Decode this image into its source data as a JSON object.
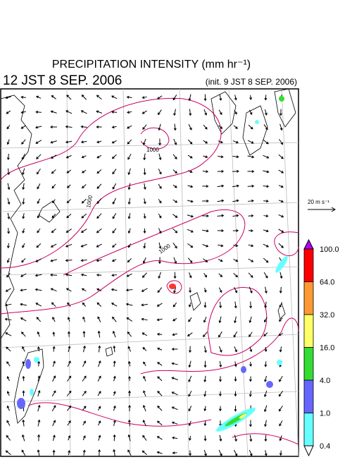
{
  "header": {
    "title": "PRECIPITATION INTENSITY (mm hr⁻¹)",
    "valid_time": "12 JST 8 SEP. 2006",
    "init_time": "(init. 9 JST 8 SEP. 2006)"
  },
  "map": {
    "contour_labels": [
      "1000",
      "1000",
      "1000"
    ],
    "reference_vector": "20 m s⁻¹"
  },
  "colorbar": {
    "labels": [
      "100.0",
      "64.0",
      "32.0",
      "16.0",
      "4.0",
      "1.0",
      "0.4"
    ],
    "colors": [
      "#b400ff",
      "#ff0000",
      "#ff9933",
      "#ffff66",
      "#33dd33",
      "#6666ff",
      "#66ffff",
      "#ffffff"
    ]
  }
}
